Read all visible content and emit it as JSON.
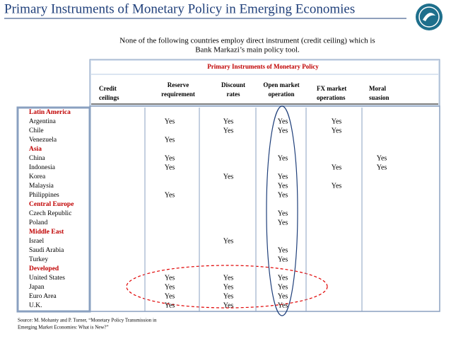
{
  "title": "Primary Instruments of Monetary Policy in Emerging Economies",
  "note": [
    "None of the following countries employ direct instrument (credit ceiling) which is",
    "Bank Markazi’s main policy tool."
  ],
  "table": {
    "caption": "Primary Instruments of Monetary Policy",
    "columns": [
      [
        "Credit",
        "ceilings"
      ],
      [
        "Reserve",
        "requirement"
      ],
      [
        "Discount",
        "rates"
      ],
      [
        "Open market",
        "operation"
      ],
      [
        "FX market",
        "operations"
      ],
      [
        "Moral",
        "suasion"
      ]
    ],
    "rows": [
      {
        "label": "Latin America",
        "group": true
      },
      {
        "label": "Argentina",
        "cells": [
          null,
          "Yes",
          "Yes",
          "Yes",
          "Yes",
          null
        ]
      },
      {
        "label": "Chile",
        "cells": [
          null,
          null,
          "Yes",
          "Yes",
          "Yes",
          null
        ]
      },
      {
        "label": "Venezuela",
        "cells": [
          null,
          "Yes",
          null,
          null,
          null,
          null
        ]
      },
      {
        "label": "Asia",
        "group": true
      },
      {
        "label": "China",
        "cells": [
          null,
          "Yes",
          null,
          "Yes",
          null,
          "Yes"
        ]
      },
      {
        "label": "Indonesia",
        "cells": [
          null,
          "Yes",
          null,
          null,
          "Yes",
          "Yes"
        ]
      },
      {
        "label": "Korea",
        "cells": [
          null,
          null,
          "Yes",
          "Yes",
          null,
          null
        ]
      },
      {
        "label": "Malaysia",
        "cells": [
          null,
          null,
          null,
          "Yes",
          "Yes",
          null
        ]
      },
      {
        "label": "Philippines",
        "cells": [
          null,
          "Yes",
          null,
          "Yes",
          null,
          null
        ]
      },
      {
        "label": "Central Europe",
        "group": true
      },
      {
        "label": "Czech Republic",
        "cells": [
          null,
          null,
          null,
          "Yes",
          null,
          null
        ]
      },
      {
        "label": "Poland",
        "cells": [
          null,
          null,
          null,
          "Yes",
          null,
          null
        ]
      },
      {
        "label": "Middle East",
        "group": true
      },
      {
        "label": "Israel",
        "cells": [
          null,
          null,
          "Yes",
          null,
          null,
          null
        ]
      },
      {
        "label": "Saudi Arabia",
        "cells": [
          null,
          null,
          null,
          "Yes",
          null,
          null
        ]
      },
      {
        "label": "Turkey",
        "cells": [
          null,
          null,
          null,
          "Yes",
          null,
          null
        ]
      },
      {
        "label": "Developed",
        "group": true
      },
      {
        "label": "United States",
        "cells": [
          null,
          "Yes",
          "Yes",
          "Yes",
          null,
          null
        ]
      },
      {
        "label": "Japan",
        "cells": [
          null,
          "Yes",
          "Yes",
          "Yes",
          null,
          null
        ]
      },
      {
        "label": "Euro Area",
        "cells": [
          null,
          "Yes",
          "Yes",
          "Yes",
          null,
          null
        ]
      },
      {
        "label": "U.K.",
        "cells": [
          null,
          "Yes",
          "Yes",
          "Yes",
          null,
          null
        ]
      }
    ]
  },
  "source": [
    "Source: M. Mohanty and P. Turner, “Monetary Policy Transmission in",
    "Emerging Market Economies: What is New?”"
  ]
}
